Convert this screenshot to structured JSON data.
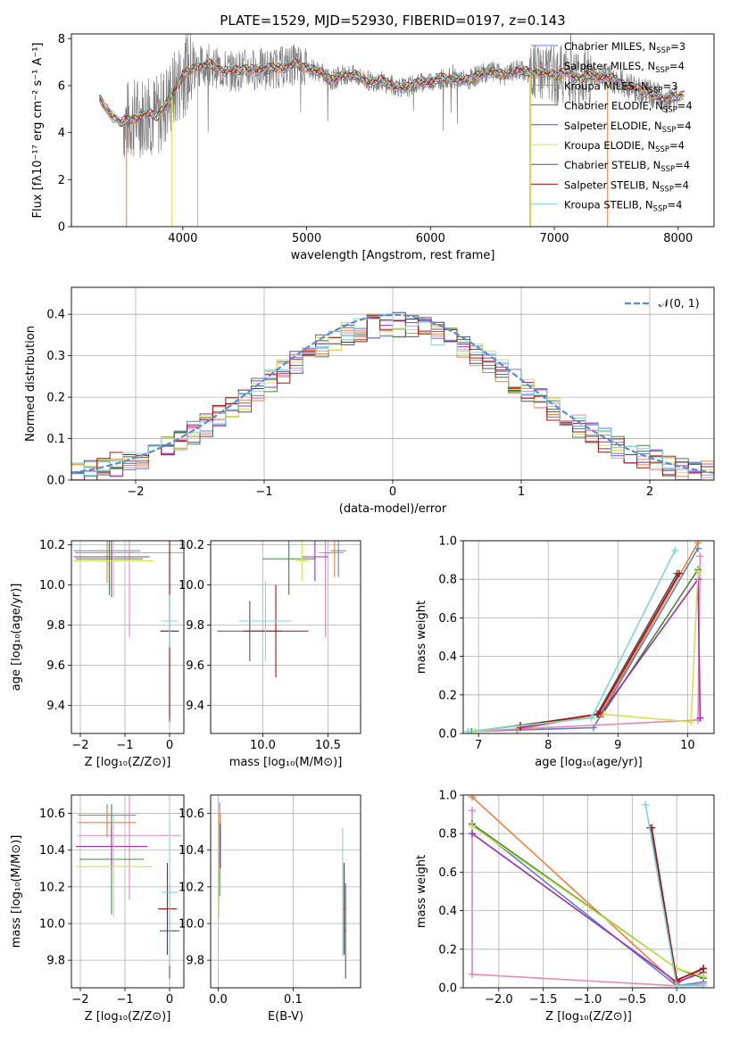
{
  "chart_data": [
    {
      "id": "spectrum",
      "type": "line",
      "title": "PLATE=1529, MJD=52930, FIBERID=0197, z=0.143",
      "xlabel": "wavelength [Angstrom, rest frame]",
      "ylabel": "Flux [fλ10⁻¹⁷ erg cm⁻² s⁻¹ A⁻¹]",
      "xlim": [
        3100,
        8290
      ],
      "ylim": [
        0,
        8.2
      ],
      "xticks": [
        4000,
        5000,
        6000,
        7000,
        8000
      ],
      "yticks": [
        0,
        2,
        4,
        6,
        8
      ],
      "grid": false,
      "legend_position": "top-right",
      "legend": [
        {
          "label": "Chabrier MILES, N",
          "sub": "SSP",
          "suffix": "=3",
          "color": "#5b7fd4"
        },
        {
          "label": "Salpeter MILES, N",
          "sub": "SSP",
          "suffix": "=4",
          "color": "#e887b8"
        },
        {
          "label": "Kroupa MILES, N",
          "sub": "SSP",
          "suffix": "=3",
          "color": "#f07f3a"
        },
        {
          "label": "Chabrier ELODIE, N",
          "sub": "SSP",
          "suffix": "=4",
          "color": "#3d8b3d"
        },
        {
          "label": "Salpeter ELODIE, N",
          "sub": "SSP",
          "suffix": "=4",
          "color": "#9b30b0"
        },
        {
          "label": "Kroupa ELODIE, N",
          "sub": "SSP",
          "suffix": "=4",
          "color": "#d4e050"
        },
        {
          "label": "Chabrier STELIB, N",
          "sub": "SSP",
          "suffix": "=4",
          "color": "#555555"
        },
        {
          "label": "Salpeter STELIB, N",
          "sub": "SSP",
          "suffix": "=4",
          "color": "#aa1111"
        },
        {
          "label": "Kroupa STELIB, N",
          "sub": "SSP",
          "suffix": "=4",
          "color": "#7fd6d6"
        }
      ],
      "data_color": "#808080",
      "data_range": [
        3520,
        7990
      ],
      "continuum": [
        [
          3330,
          5.4
        ],
        [
          3400,
          4.9
        ],
        [
          3500,
          4.4
        ],
        [
          3600,
          4.6
        ],
        [
          3700,
          4.8
        ],
        [
          3800,
          4.7
        ],
        [
          3900,
          5.5
        ],
        [
          4000,
          6.4
        ],
        [
          4100,
          6.8
        ],
        [
          4200,
          6.9
        ],
        [
          4300,
          6.7
        ],
        [
          4400,
          6.6
        ],
        [
          4500,
          6.7
        ],
        [
          4600,
          6.7
        ],
        [
          4700,
          6.7
        ],
        [
          4800,
          6.8
        ],
        [
          4900,
          6.9
        ],
        [
          5000,
          6.8
        ],
        [
          5100,
          6.6
        ],
        [
          5200,
          6.2
        ],
        [
          5300,
          6.5
        ],
        [
          5400,
          6.4
        ],
        [
          5500,
          6.2
        ],
        [
          5600,
          6.2
        ],
        [
          5700,
          6.0
        ],
        [
          5800,
          5.9
        ],
        [
          5900,
          6.1
        ],
        [
          6000,
          6.2
        ],
        [
          6100,
          6.3
        ],
        [
          6200,
          6.3
        ],
        [
          6300,
          6.2
        ],
        [
          6400,
          6.5
        ],
        [
          6500,
          6.6
        ],
        [
          6600,
          6.4
        ],
        [
          6700,
          6.7
        ],
        [
          6800,
          6.5
        ],
        [
          6900,
          6.6
        ],
        [
          7000,
          6.4
        ],
        [
          7100,
          6.6
        ],
        [
          7200,
          6.3
        ],
        [
          7300,
          6.4
        ],
        [
          7400,
          6.4
        ],
        [
          7500,
          6.2
        ],
        [
          7600,
          6.0
        ],
        [
          7700,
          5.8
        ],
        [
          7800,
          5.6
        ],
        [
          7900,
          5.4
        ],
        [
          8000,
          5.5
        ],
        [
          8050,
          5.7
        ]
      ]
    },
    {
      "id": "residuals",
      "type": "bar",
      "xlabel": "(data-model)/error",
      "ylabel": "Normed distribution",
      "xlim": [
        -2.5,
        2.5
      ],
      "ylim": [
        0,
        0.465
      ],
      "xticks": [
        -2,
        -1,
        0,
        1,
        2
      ],
      "xtick_labels": [
        "−2",
        "−1",
        "0",
        "1",
        "2"
      ],
      "yticks": [
        0,
        0.1,
        0.2,
        0.3,
        0.4
      ],
      "ytick_labels": [
        "0.0",
        "0.1",
        "0.2",
        "0.3",
        "0.4"
      ],
      "grid": true,
      "legend_position": "top-right",
      "normal_label": "𝒩(0, 1)",
      "normal_color": "#5b8bd8",
      "bin_width": 0.1
    },
    {
      "id": "age-vs-z",
      "type": "scatter",
      "xlabel": "Z [log₁₀(Z/Z⊙)]",
      "ylabel": "age  [log₁₀(age/yr)]",
      "xlim": [
        -2.2,
        0.32
      ],
      "ylim": [
        9.26,
        10.22
      ],
      "xticks": [
        -2,
        -1,
        0
      ],
      "xtick_labels": [
        "−2",
        "−1",
        "0"
      ],
      "yticks": [
        9.4,
        9.6,
        9.8,
        10.0,
        10.2
      ],
      "ytick_labels": [
        "9.4",
        "9.6",
        "9.8",
        "10.0",
        "10.2"
      ],
      "grid": true,
      "points": [
        {
          "x": -1.4,
          "y": 10.17,
          "xerr": 0.75,
          "yerr": 0.06,
          "color": "#5b7fd4"
        },
        {
          "x": -0.9,
          "y": 10.16,
          "xerr": 1.2,
          "yerr": 0.42,
          "color": "#e887b8"
        },
        {
          "x": -1.4,
          "y": 10.16,
          "xerr": 0.72,
          "yerr": 0.15,
          "color": "#f07f3a"
        },
        {
          "x": -1.35,
          "y": 10.13,
          "xerr": 0.75,
          "yerr": 0.18,
          "color": "#3d8b3d"
        },
        {
          "x": -1.3,
          "y": 10.14,
          "xerr": 0.85,
          "yerr": 0.2,
          "color": "#9b30b0"
        },
        {
          "x": -1.25,
          "y": 10.12,
          "xerr": 0.9,
          "yerr": 0.18,
          "color": "#d4e050"
        },
        {
          "x": 0.0,
          "y": 9.77,
          "xerr": 0.2,
          "yerr": 0.42,
          "color": "#555555"
        },
        {
          "x": 0.0,
          "y": 9.77,
          "xerr": 0.21,
          "yerr": 0.45,
          "color": "#aa1111"
        },
        {
          "x": 0.0,
          "y": 9.82,
          "xerr": 0.19,
          "yerr": 0.13,
          "color": "#7fd6d6"
        }
      ]
    },
    {
      "id": "age-vs-mass",
      "type": "scatter",
      "xlabel": "mass [log₁₀(M/M⊙)]",
      "ylabel": "",
      "xlim": [
        9.6,
        10.75
      ],
      "ylim": [
        9.26,
        10.22
      ],
      "xticks": [
        10.0,
        10.5
      ],
      "xtick_labels": [
        "10.0",
        "10.5"
      ],
      "yticks": [
        9.4,
        9.6,
        9.8,
        10.0,
        10.2
      ],
      "ytick_labels": [
        "9.4",
        "9.6",
        "9.8",
        "10.0",
        "10.2"
      ],
      "grid": true,
      "points": [
        {
          "x": 10.58,
          "y": 10.17,
          "xerr": 0.06,
          "yerr": 0.13,
          "color": "#5b7fd4"
        },
        {
          "x": 10.48,
          "y": 10.16,
          "xerr": 0.05,
          "yerr": 0.42,
          "color": "#e887b8"
        },
        {
          "x": 10.55,
          "y": 10.16,
          "xerr": 0.07,
          "yerr": 0.12,
          "color": "#f07f3a"
        },
        {
          "x": 10.2,
          "y": 10.13,
          "xerr": 0.2,
          "yerr": 0.18,
          "color": "#3d8b3d"
        },
        {
          "x": 10.4,
          "y": 10.14,
          "xerr": 0.1,
          "yerr": 0.12,
          "color": "#9b30b0"
        },
        {
          "x": 10.3,
          "y": 10.12,
          "xerr": 0.05,
          "yerr": 0.1,
          "color": "#d4e050"
        },
        {
          "x": 9.9,
          "y": 9.77,
          "xerr": 0.25,
          "yerr": 0.15,
          "color": "#555555"
        },
        {
          "x": 10.1,
          "y": 9.77,
          "xerr": 0.25,
          "yerr": 0.23,
          "color": "#aa1111"
        },
        {
          "x": 10.02,
          "y": 9.82,
          "xerr": 0.2,
          "yerr": 0.2,
          "color": "#7fd6d6"
        }
      ]
    },
    {
      "id": "weight-vs-age",
      "type": "line",
      "xlabel": "age  [log₁₀(age/yr)]",
      "ylabel": "mass weight",
      "xlim": [
        6.78,
        10.38
      ],
      "ylim": [
        0,
        1.0
      ],
      "xticks": [
        7,
        8,
        9,
        10
      ],
      "xtick_labels": [
        "7",
        "8",
        "9",
        "10"
      ],
      "yticks": [
        0,
        0.2,
        0.4,
        0.6,
        0.8,
        1.0
      ],
      "ytick_labels": [
        "0.0",
        "0.2",
        "0.4",
        "0.6",
        "0.8",
        "1.0"
      ],
      "grid": true,
      "series": [
        {
          "color": "#5b7fd4",
          "x": [
            6.85,
            8.65,
            10.15
          ],
          "y": [
            0.01,
            0.03,
            0.96
          ]
        },
        {
          "color": "#e887b8",
          "x": [
            6.85,
            10.15,
            10.18
          ],
          "y": [
            0.01,
            0.07,
            0.92
          ]
        },
        {
          "color": "#f07f3a",
          "x": [
            7.55,
            8.75,
            10.15
          ],
          "y": [
            0.02,
            0.1,
            0.99
          ]
        },
        {
          "color": "#3d8b3d",
          "x": [
            6.9,
            8.78,
            10.15
          ],
          "y": [
            0.01,
            0.1,
            0.85
          ]
        },
        {
          "color": "#9b30b0",
          "x": [
            7.6,
            8.75,
            10.15,
            10.18
          ],
          "y": [
            0.03,
            0.1,
            0.8,
            0.08
          ]
        },
        {
          "color": "#d4e050",
          "x": [
            6.95,
            8.8,
            10.05,
            10.15
          ],
          "y": [
            0.01,
            0.1,
            0.06,
            0.84
          ]
        },
        {
          "color": "#555555",
          "x": [
            7.6,
            8.7,
            9.85
          ],
          "y": [
            0.04,
            0.1,
            0.83
          ]
        },
        {
          "color": "#aa1111",
          "x": [
            7.6,
            8.72,
            9.88
          ],
          "y": [
            0.04,
            0.1,
            0.83
          ]
        },
        {
          "color": "#7fd6d6",
          "x": [
            6.85,
            8.62,
            9.82
          ],
          "y": [
            0.01,
            0.08,
            0.95
          ]
        }
      ]
    },
    {
      "id": "mass-vs-z",
      "type": "scatter",
      "xlabel": "Z [log₁₀(Z/Z⊙)]",
      "ylabel": "mass [log₁₀(M/M⊙)]",
      "xlim": [
        -2.2,
        0.32
      ],
      "ylim": [
        9.65,
        10.7
      ],
      "xticks": [
        -2,
        -1,
        0
      ],
      "xtick_labels": [
        "−2",
        "−1",
        "0"
      ],
      "yticks": [
        9.8,
        10.0,
        10.2,
        10.4,
        10.6
      ],
      "ytick_labels": [
        "9.8",
        "10.0",
        "10.2",
        "10.4",
        "10.6"
      ],
      "grid": true,
      "points": [
        {
          "x": -1.4,
          "y": 10.59,
          "xerr": 0.65,
          "yerr": 0.06,
          "color": "#5b7fd4"
        },
        {
          "x": -0.9,
          "y": 10.48,
          "xerr": 1.15,
          "yerr": 0.35,
          "color": "#e887b8"
        },
        {
          "x": -1.4,
          "y": 10.55,
          "xerr": 0.65,
          "yerr": 0.08,
          "color": "#f07f3a"
        },
        {
          "x": -1.3,
          "y": 10.35,
          "xerr": 0.72,
          "yerr": 0.3,
          "color": "#3d8b3d"
        },
        {
          "x": -1.3,
          "y": 10.42,
          "xerr": 0.8,
          "yerr": 0.12,
          "color": "#9b30b0"
        },
        {
          "x": -1.25,
          "y": 10.31,
          "xerr": 0.85,
          "yerr": 0.28,
          "color": "#d4e050"
        },
        {
          "x": 0.0,
          "y": 9.96,
          "xerr": 0.22,
          "yerr": 0.26,
          "color": "#555555"
        },
        {
          "x": -0.05,
          "y": 10.08,
          "xerr": 0.21,
          "yerr": 0.25,
          "color": "#aa1111"
        },
        {
          "x": 0.0,
          "y": 10.17,
          "xerr": 0.18,
          "yerr": 0.4,
          "color": "#7fd6d6"
        }
      ]
    },
    {
      "id": "mass-vs-ebv",
      "type": "scatter",
      "xlabel": "E(B-V)",
      "ylabel": "",
      "xlim": [
        -0.01,
        0.19
      ],
      "ylim": [
        9.65,
        10.7
      ],
      "xticks": [
        0.0,
        0.1
      ],
      "xtick_labels": [
        "0.0",
        "0.1"
      ],
      "yticks": [
        9.8,
        10.0,
        10.2,
        10.4,
        10.6
      ],
      "ytick_labels": [
        "9.8",
        "10.0",
        "10.2",
        "10.4",
        "10.6"
      ],
      "grid": true,
      "points": [
        {
          "x": 0.002,
          "y": 10.59,
          "xerr": 0.001,
          "yerr": 0.07,
          "color": "#5b7fd4"
        },
        {
          "x": 0.003,
          "y": 10.48,
          "xerr": 0.001,
          "yerr": 0.12,
          "color": "#e887b8"
        },
        {
          "x": 0.002,
          "y": 10.55,
          "xerr": 0.001,
          "yerr": 0.08,
          "color": "#f07f3a"
        },
        {
          "x": 0.002,
          "y": 10.35,
          "xerr": 0.001,
          "yerr": 0.2,
          "color": "#3d8b3d"
        },
        {
          "x": 0.003,
          "y": 10.42,
          "xerr": 0.001,
          "yerr": 0.12,
          "color": "#9b30b0"
        },
        {
          "x": 0.001,
          "y": 10.31,
          "xerr": 0.001,
          "yerr": 0.28,
          "color": "#d4e050"
        },
        {
          "x": 0.17,
          "y": 9.96,
          "xerr": 0.001,
          "yerr": 0.26,
          "color": "#555555"
        },
        {
          "x": 0.168,
          "y": 10.08,
          "xerr": 0.001,
          "yerr": 0.25,
          "color": "#aa1111"
        },
        {
          "x": 0.166,
          "y": 10.17,
          "xerr": 0.001,
          "yerr": 0.35,
          "color": "#7fd6d6"
        }
      ]
    },
    {
      "id": "weight-vs-z",
      "type": "line",
      "xlabel": "Z [log₁₀(Z/Z⊙)]",
      "ylabel": "mass weight",
      "xlim": [
        -2.4,
        0.42
      ],
      "ylim": [
        0,
        1.0
      ],
      "xticks": [
        -2.0,
        -1.5,
        -1.0,
        -0.5,
        0.0
      ],
      "xtick_labels": [
        "−2.0",
        "−1.5",
        "−1.0",
        "−0.5",
        "0.0"
      ],
      "yticks": [
        0,
        0.2,
        0.4,
        0.6,
        0.8,
        1.0
      ],
      "ytick_labels": [
        "0.0",
        "0.2",
        "0.4",
        "0.6",
        "0.8",
        "1.0"
      ],
      "grid": true,
      "series": [
        {
          "color": "#5b7fd4",
          "x": [
            -2.3,
            0.0,
            0.3
          ],
          "y": [
            0.85,
            0.01,
            0.03
          ]
        },
        {
          "color": "#e887b8",
          "x": [
            -2.3,
            -2.3,
            0.0,
            0.3
          ],
          "y": [
            0.92,
            0.07,
            0.01,
            0.02
          ]
        },
        {
          "color": "#f07f3a",
          "x": [
            -2.3,
            0.0,
            0.3
          ],
          "y": [
            0.99,
            0.02,
            0.1
          ]
        },
        {
          "color": "#3d8b3d",
          "x": [
            -2.3,
            0.0,
            0.3
          ],
          "y": [
            0.85,
            0.1,
            0.05
          ]
        },
        {
          "color": "#9b30b0",
          "x": [
            -2.3,
            0.0,
            0.3
          ],
          "y": [
            0.8,
            0.03,
            0.08
          ]
        },
        {
          "color": "#d4e050",
          "x": [
            -2.3,
            0.0,
            0.3
          ],
          "y": [
            0.84,
            0.1,
            0.06
          ]
        },
        {
          "color": "#555555",
          "x": [
            -0.3,
            0.0,
            0.3
          ],
          "y": [
            0.83,
            0.04,
            0.1
          ]
        },
        {
          "color": "#aa1111",
          "x": [
            -0.28,
            0.0,
            0.3
          ],
          "y": [
            0.83,
            0.04,
            0.1
          ]
        },
        {
          "color": "#7fd6d6",
          "x": [
            -0.35,
            0.0,
            0.3
          ],
          "y": [
            0.95,
            0.01,
            0.01
          ]
        }
      ]
    }
  ]
}
